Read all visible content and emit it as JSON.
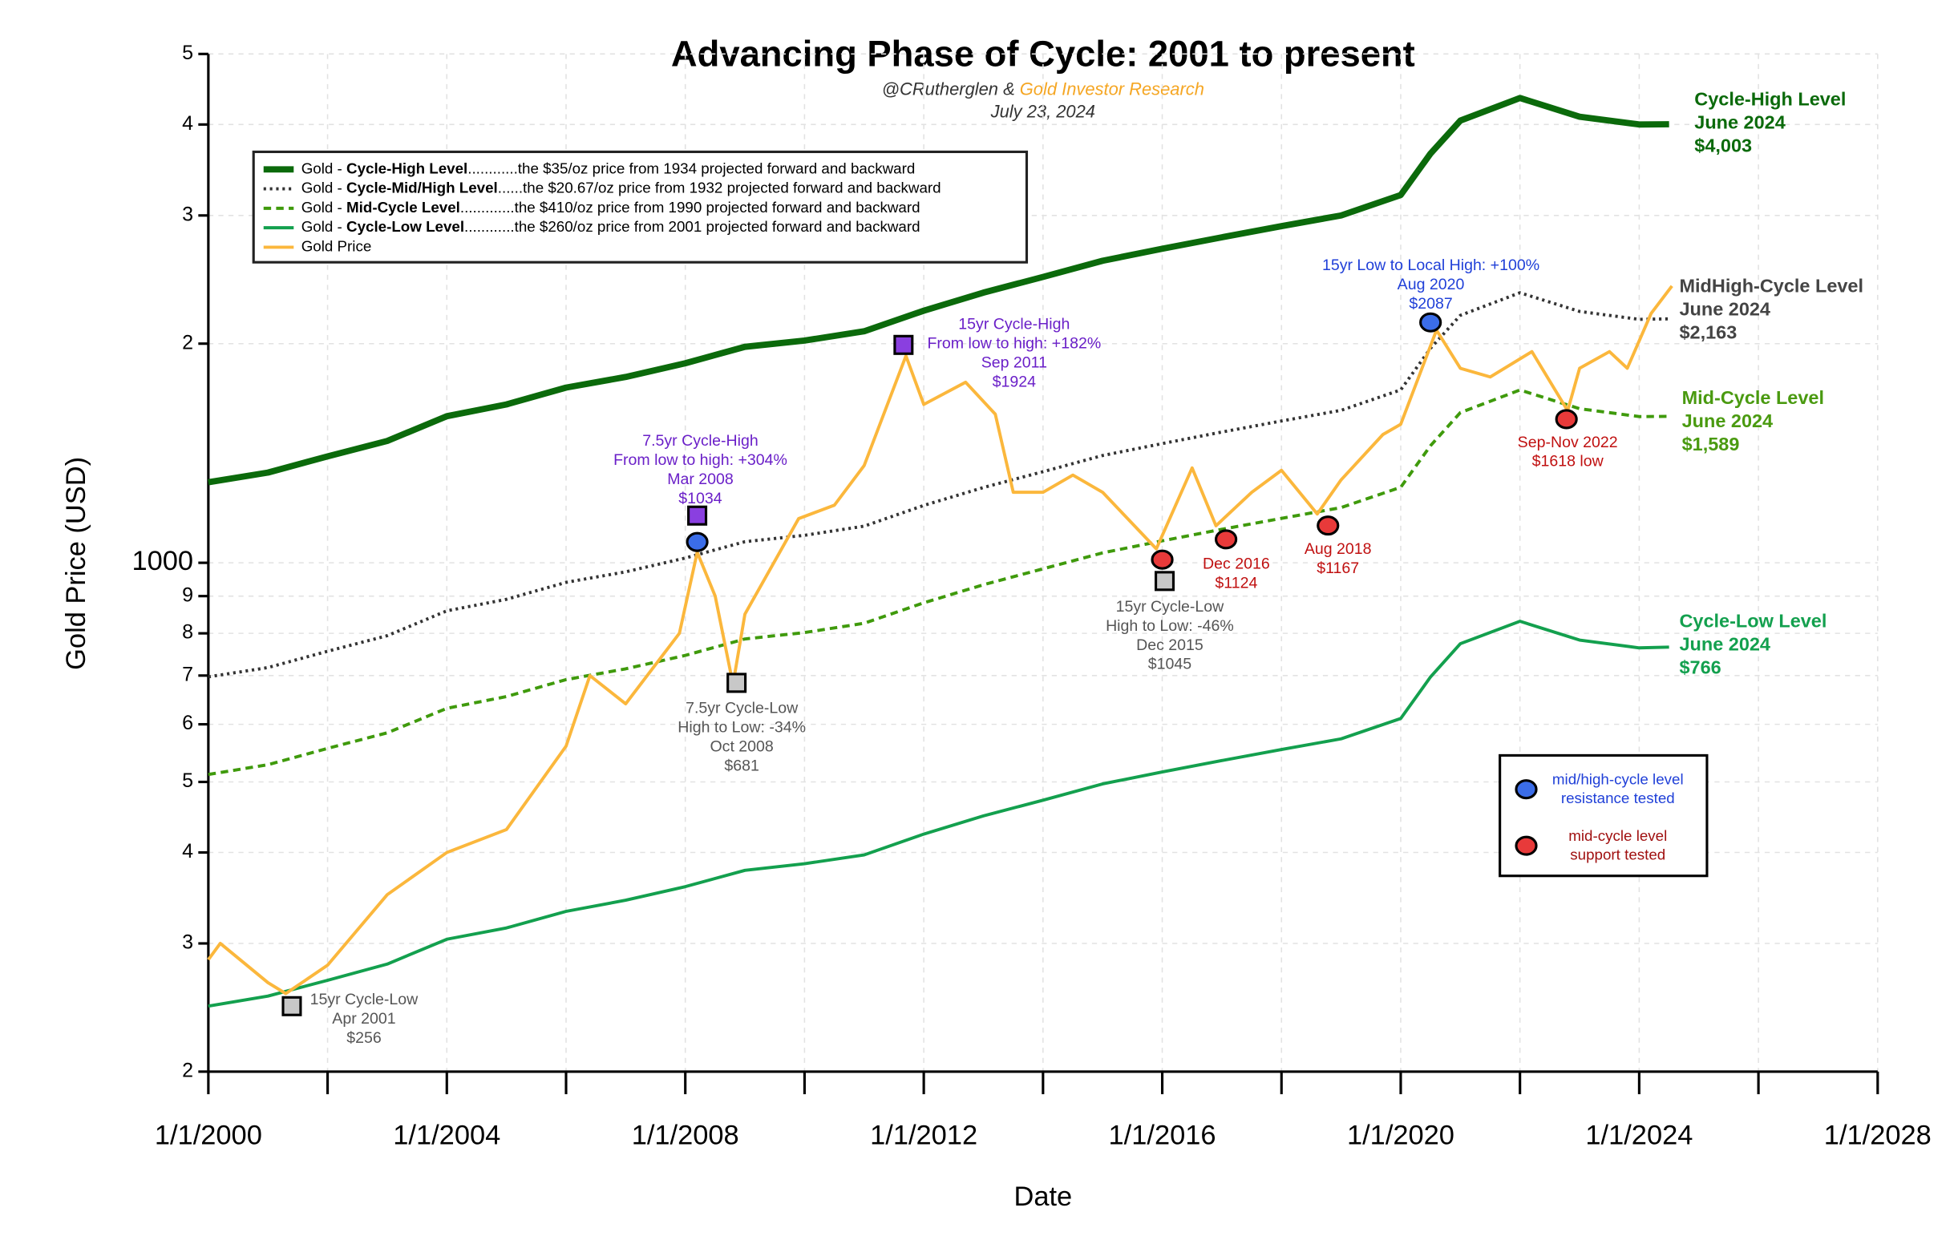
{
  "chart_data": {
    "type": "line",
    "title": "Advancing Phase of Cycle: 2001 to present",
    "subtitle": [
      "@CRutherglen & ",
      "Gold Investor Research"
    ],
    "date": "July 23, 2024",
    "xlabel": "Date",
    "ylabel": "Gold Price (USD)",
    "log_scale": true,
    "grid": true,
    "xlim": [
      2000,
      2028
    ],
    "xticks": [
      {
        "value": 2000,
        "label": "1/1/2000"
      },
      {
        "value": 2004,
        "label": "1/1/2004"
      },
      {
        "value": 2008,
        "label": "1/1/2008"
      },
      {
        "value": 2012,
        "label": "1/1/2012"
      },
      {
        "value": 2016,
        "label": "1/1/2016"
      },
      {
        "value": 2020,
        "label": "1/1/2020"
      },
      {
        "value": 2024,
        "label": "1/1/2024"
      },
      {
        "value": 2028,
        "label": "1/1/2028"
      }
    ],
    "xminorticks": [
      2002,
      2006,
      2010,
      2014,
      2018,
      2022,
      2026
    ],
    "ylim": [
      200,
      5000
    ],
    "yticks": [
      {
        "value": 200,
        "label": "2"
      },
      {
        "value": 300,
        "label": "3"
      },
      {
        "value": 400,
        "label": "4"
      },
      {
        "value": 500,
        "label": "5"
      },
      {
        "value": 600,
        "label": "6"
      },
      {
        "value": 700,
        "label": "7"
      },
      {
        "value": 800,
        "label": "8"
      },
      {
        "value": 900,
        "label": "9"
      },
      1000,
      {
        "value": 2000,
        "label": "2"
      },
      {
        "value": 3000,
        "label": "3"
      },
      {
        "value": 4000,
        "label": "4"
      },
      {
        "value": 5000,
        "label": "5"
      }
    ],
    "series": [
      {
        "name": "Cycle-High Level",
        "legend_prefix": "Gold - ",
        "legend_suffix": "............the $35/oz price from 1934 projected forward and backward",
        "color": "#0b6a0b",
        "width": 5,
        "dash": "none",
        "x": [
          2000,
          2001,
          2002,
          2003,
          2004,
          2005,
          2006,
          2007,
          2008,
          2009,
          2010,
          2011,
          2012,
          2013,
          2014,
          2015,
          2016,
          2017,
          2018,
          2019,
          2020,
          2020.5,
          2021,
          2022,
          2023,
          2024,
          2024.5
        ],
        "values": [
          1290,
          1330,
          1400,
          1470,
          1590,
          1650,
          1740,
          1800,
          1880,
          1980,
          2020,
          2080,
          2220,
          2350,
          2470,
          2600,
          2700,
          2800,
          2900,
          3000,
          3200,
          3650,
          4050,
          4350,
          4100,
          4000,
          4003
        ]
      },
      {
        "name": "Cycle-Mid/High Level",
        "legend_prefix": "Gold - ",
        "legend_suffix": "......the $20.67/oz price from 1932 projected forward and backward",
        "color": "#333333",
        "width": 2.5,
        "dash": "2,3",
        "x": [
          2000,
          2001,
          2002,
          2003,
          2004,
          2005,
          2006,
          2007,
          2008,
          2009,
          2010,
          2011,
          2012,
          2013,
          2014,
          2015,
          2016,
          2017,
          2018,
          2019,
          2020,
          2020.5,
          2021,
          2022,
          2023,
          2024,
          2024.5
        ],
        "values": [
          697,
          718,
          756,
          794,
          859,
          891,
          940,
          972,
          1015,
          1069,
          1091,
          1123,
          1199,
          1269,
          1334,
          1404,
          1458,
          1512,
          1566,
          1620,
          1728,
          1971,
          2187,
          2349,
          2214,
          2160,
          2163
        ]
      },
      {
        "name": "Mid-Cycle Level",
        "legend_prefix": "Gold - ",
        "legend_suffix": ".............the $410/oz price from 1990 projected forward and backward",
        "color": "#3f9a0c",
        "width": 2.5,
        "dash": "6,4",
        "x": [
          2000,
          2001,
          2002,
          2003,
          2004,
          2005,
          2006,
          2007,
          2008,
          2009,
          2010,
          2011,
          2012,
          2013,
          2014,
          2015,
          2016,
          2017,
          2018,
          2019,
          2020,
          2020.5,
          2021,
          2022,
          2023,
          2024,
          2024.5
        ],
        "values": [
          512,
          528,
          556,
          584,
          631,
          655,
          691,
          715,
          746,
          786,
          802,
          826,
          881,
          933,
          981,
          1032,
          1072,
          1112,
          1151,
          1191,
          1270,
          1449,
          1608,
          1727,
          1628,
          1588,
          1589
        ]
      },
      {
        "name": "Cycle-Low Level",
        "legend_prefix": "Gold - ",
        "legend_suffix": "............the $260/oz price from 2001 projected forward and backward",
        "color": "#13a04e",
        "width": 2.5,
        "dash": "none",
        "x": [
          2000,
          2001,
          2002,
          2003,
          2004,
          2005,
          2006,
          2007,
          2008,
          2009,
          2010,
          2011,
          2012,
          2013,
          2014,
          2015,
          2016,
          2017,
          2018,
          2019,
          2020,
          2020.5,
          2021,
          2022,
          2023,
          2024,
          2024.5
        ],
        "values": [
          246,
          254,
          267,
          281,
          304,
          315,
          332,
          344,
          359,
          378,
          386,
          397,
          424,
          449,
          472,
          497,
          516,
          535,
          554,
          573,
          611,
          697,
          774,
          831,
          783,
          764,
          766
        ]
      },
      {
        "name": "Gold Price",
        "legend_prefix": "",
        "legend_suffix": "",
        "color": "#fbb73c",
        "width": 2.5,
        "dash": "none",
        "x": [
          2000,
          2000.2,
          2001,
          2001.3,
          2002,
          2003,
          2004,
          2005,
          2006,
          2006.4,
          2007,
          2007.9,
          2008.2,
          2008.5,
          2008.8,
          2009,
          2009.9,
          2010.5,
          2011,
          2011.7,
          2012,
          2012.7,
          2013.2,
          2013.5,
          2014,
          2014.5,
          2015,
          2015.9,
          2016.5,
          2016.9,
          2017.5,
          2018,
          2018.6,
          2019,
          2019.7,
          2020,
          2020.6,
          2021,
          2021.5,
          2022.2,
          2022.8,
          2023,
          2023.5,
          2023.8,
          2024.2,
          2024.55
        ],
        "values": [
          285,
          300,
          265,
          256,
          280,
          350,
          400,
          430,
          560,
          700,
          640,
          800,
          1034,
          900,
          681,
          850,
          1150,
          1200,
          1360,
          1924,
          1650,
          1770,
          1600,
          1250,
          1250,
          1320,
          1250,
          1045,
          1350,
          1124,
          1250,
          1340,
          1167,
          1300,
          1500,
          1550,
          2087,
          1850,
          1800,
          1950,
          1618,
          1850,
          1950,
          1850,
          2200,
          2400
        ]
      }
    ],
    "annotations": [
      {
        "marker": "square",
        "fill": "#c8c8c8",
        "x": 2001.4,
        "y": 246,
        "text_color": "#555555",
        "text": [
          "15yr Cycle-Low",
          "Apr 2001",
          "$256"
        ]
      },
      {
        "marker": "square",
        "fill": "#8a3fe0",
        "x": 2008.2,
        "y": 1161,
        "text_color": "#6a1fc8",
        "text": [
          "7.5yr Cycle-High",
          "From low to high: +304%",
          "Mar 2008",
          "$1034"
        ]
      },
      {
        "marker": "circle",
        "fill": "#3b6de8",
        "x": 2008.2,
        "y": 1068,
        "text_color": "#3b6de8",
        "text": []
      },
      {
        "marker": "square",
        "fill": "#c8c8c8",
        "x": 2008.86,
        "y": 684,
        "text_color": "#555555",
        "text": [
          "7.5yr Cycle-Low",
          "High to Low: -34%",
          "Oct 2008",
          "$681"
        ]
      },
      {
        "marker": "square",
        "fill": "#8a3fe0",
        "x": 2011.66,
        "y": 1992,
        "text_color": "#6a1fc8",
        "text": [
          "15yr Cycle-High",
          "From low to high: +182%",
          "Sep 2011",
          "$1924"
        ]
      },
      {
        "marker": "square",
        "fill": "#c8c8c8",
        "x": 2016.04,
        "y": 944,
        "text_color": "#555555",
        "text": [
          "15yr Cycle-Low",
          "High to Low: -46%",
          "Dec 2015",
          "$1045"
        ]
      },
      {
        "marker": "circle",
        "fill": "#e83a3a",
        "x": 2016.0,
        "y": 1010,
        "text_color": "#c01010",
        "text": []
      },
      {
        "marker": "circle",
        "fill": "#e83a3a",
        "x": 2017.07,
        "y": 1077,
        "text_color": "#c01010",
        "text": [
          "Dec 2016",
          "$1124"
        ]
      },
      {
        "marker": "circle",
        "fill": "#e83a3a",
        "x": 2018.78,
        "y": 1125,
        "text_color": "#c01010",
        "text": [
          "Aug 2018",
          "$1167"
        ]
      },
      {
        "marker": "circle",
        "fill": "#3b6de8",
        "x": 2020.5,
        "y": 2139,
        "text_color": "#2040d8",
        "text": [
          "15yr Low to Local High: +100%",
          "Aug 2020",
          "$2087"
        ]
      },
      {
        "marker": "circle",
        "fill": "#e83a3a",
        "x": 2022.78,
        "y": 1575,
        "text_color": "#c01010",
        "text": [
          "Sep-Nov 2022",
          "$1618 low"
        ]
      }
    ],
    "end_labels": [
      {
        "color": "#0b6a0b",
        "text": [
          "Cycle-High Level",
          "June 2024",
          "$4,003"
        ]
      },
      {
        "color": "#444444",
        "text": [
          "MidHigh-Cycle Level",
          "June 2024",
          "$2,163"
        ]
      },
      {
        "color": "#4a9a10",
        "text": [
          "Mid-Cycle Level",
          "June 2024",
          "$1,589"
        ]
      },
      {
        "color": "#13a04e",
        "text": [
          "Cycle-Low Level",
          "June 2024",
          "$766"
        ]
      }
    ],
    "marker_legend": [
      {
        "fill": "#3b6de8",
        "text_color": "#2040d8",
        "text": [
          "mid/high-cycle level",
          "resistance tested"
        ]
      },
      {
        "fill": "#e83a3a",
        "text_color": "#a01010",
        "text": [
          "mid-cycle level",
          "support tested"
        ]
      }
    ]
  }
}
